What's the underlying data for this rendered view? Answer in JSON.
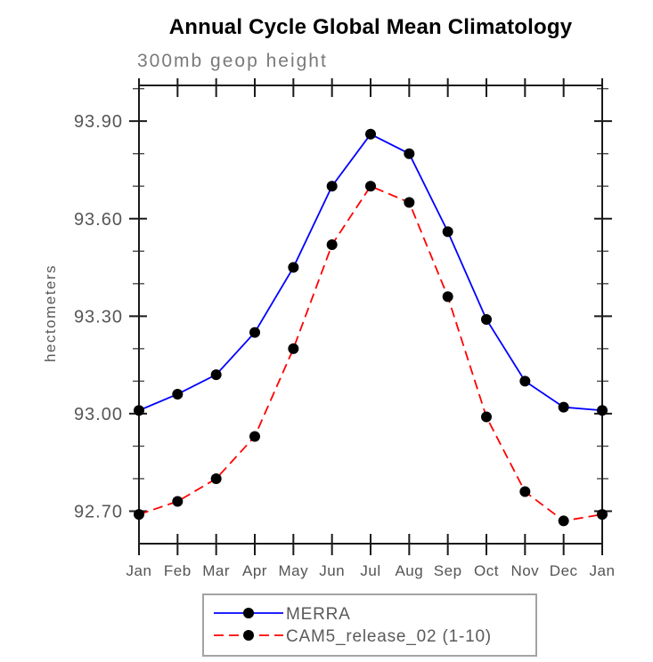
{
  "window": {
    "background": "#ffffff"
  },
  "chart_data": {
    "type": "line",
    "title": "Annual Cycle Global Mean Climatology",
    "subtitle": "300mb geop height",
    "ylabel": "hectometers",
    "xlabel": "",
    "categories": [
      "Jan",
      "Feb",
      "Mar",
      "Apr",
      "May",
      "Jun",
      "Jul",
      "Aug",
      "Sep",
      "Oct",
      "Nov",
      "Dec",
      "Jan"
    ],
    "ylim": [
      92.6,
      94.01
    ],
    "ytick_values": [
      92.7,
      93.0,
      93.3,
      93.6,
      93.9
    ],
    "ytick_labels": [
      "92.70",
      "93.00",
      "93.30",
      "93.60",
      "93.90"
    ],
    "ytick_minor_values": [
      92.8,
      92.9,
      93.1,
      93.2,
      93.4,
      93.5,
      93.7,
      93.8,
      94.0
    ],
    "grid": false,
    "legend_position": "bottom-center",
    "series": [
      {
        "name": "MERRA",
        "line_color": "#0000ff",
        "line_style": "solid",
        "marker": "filled-circle",
        "marker_color": "#000000",
        "values": [
          93.01,
          93.06,
          93.12,
          93.25,
          93.45,
          93.7,
          93.86,
          93.8,
          93.56,
          93.29,
          93.1,
          93.02,
          93.01
        ]
      },
      {
        "name": "CAM5_release_02 (1-10)",
        "line_color": "#ff0000",
        "line_style": "dashed",
        "marker": "filled-circle",
        "marker_color": "#000000",
        "values": [
          92.69,
          92.73,
          92.8,
          92.93,
          93.2,
          93.52,
          93.7,
          93.65,
          93.36,
          92.99,
          92.76,
          92.67,
          92.69
        ]
      }
    ]
  },
  "colors": {
    "axis": "#1a1a1a",
    "minor_tick": "#4a4a4a",
    "tick_label": "#565656",
    "subtitle": "#7a7a7a",
    "legend_border": "#a3a3a3"
  }
}
